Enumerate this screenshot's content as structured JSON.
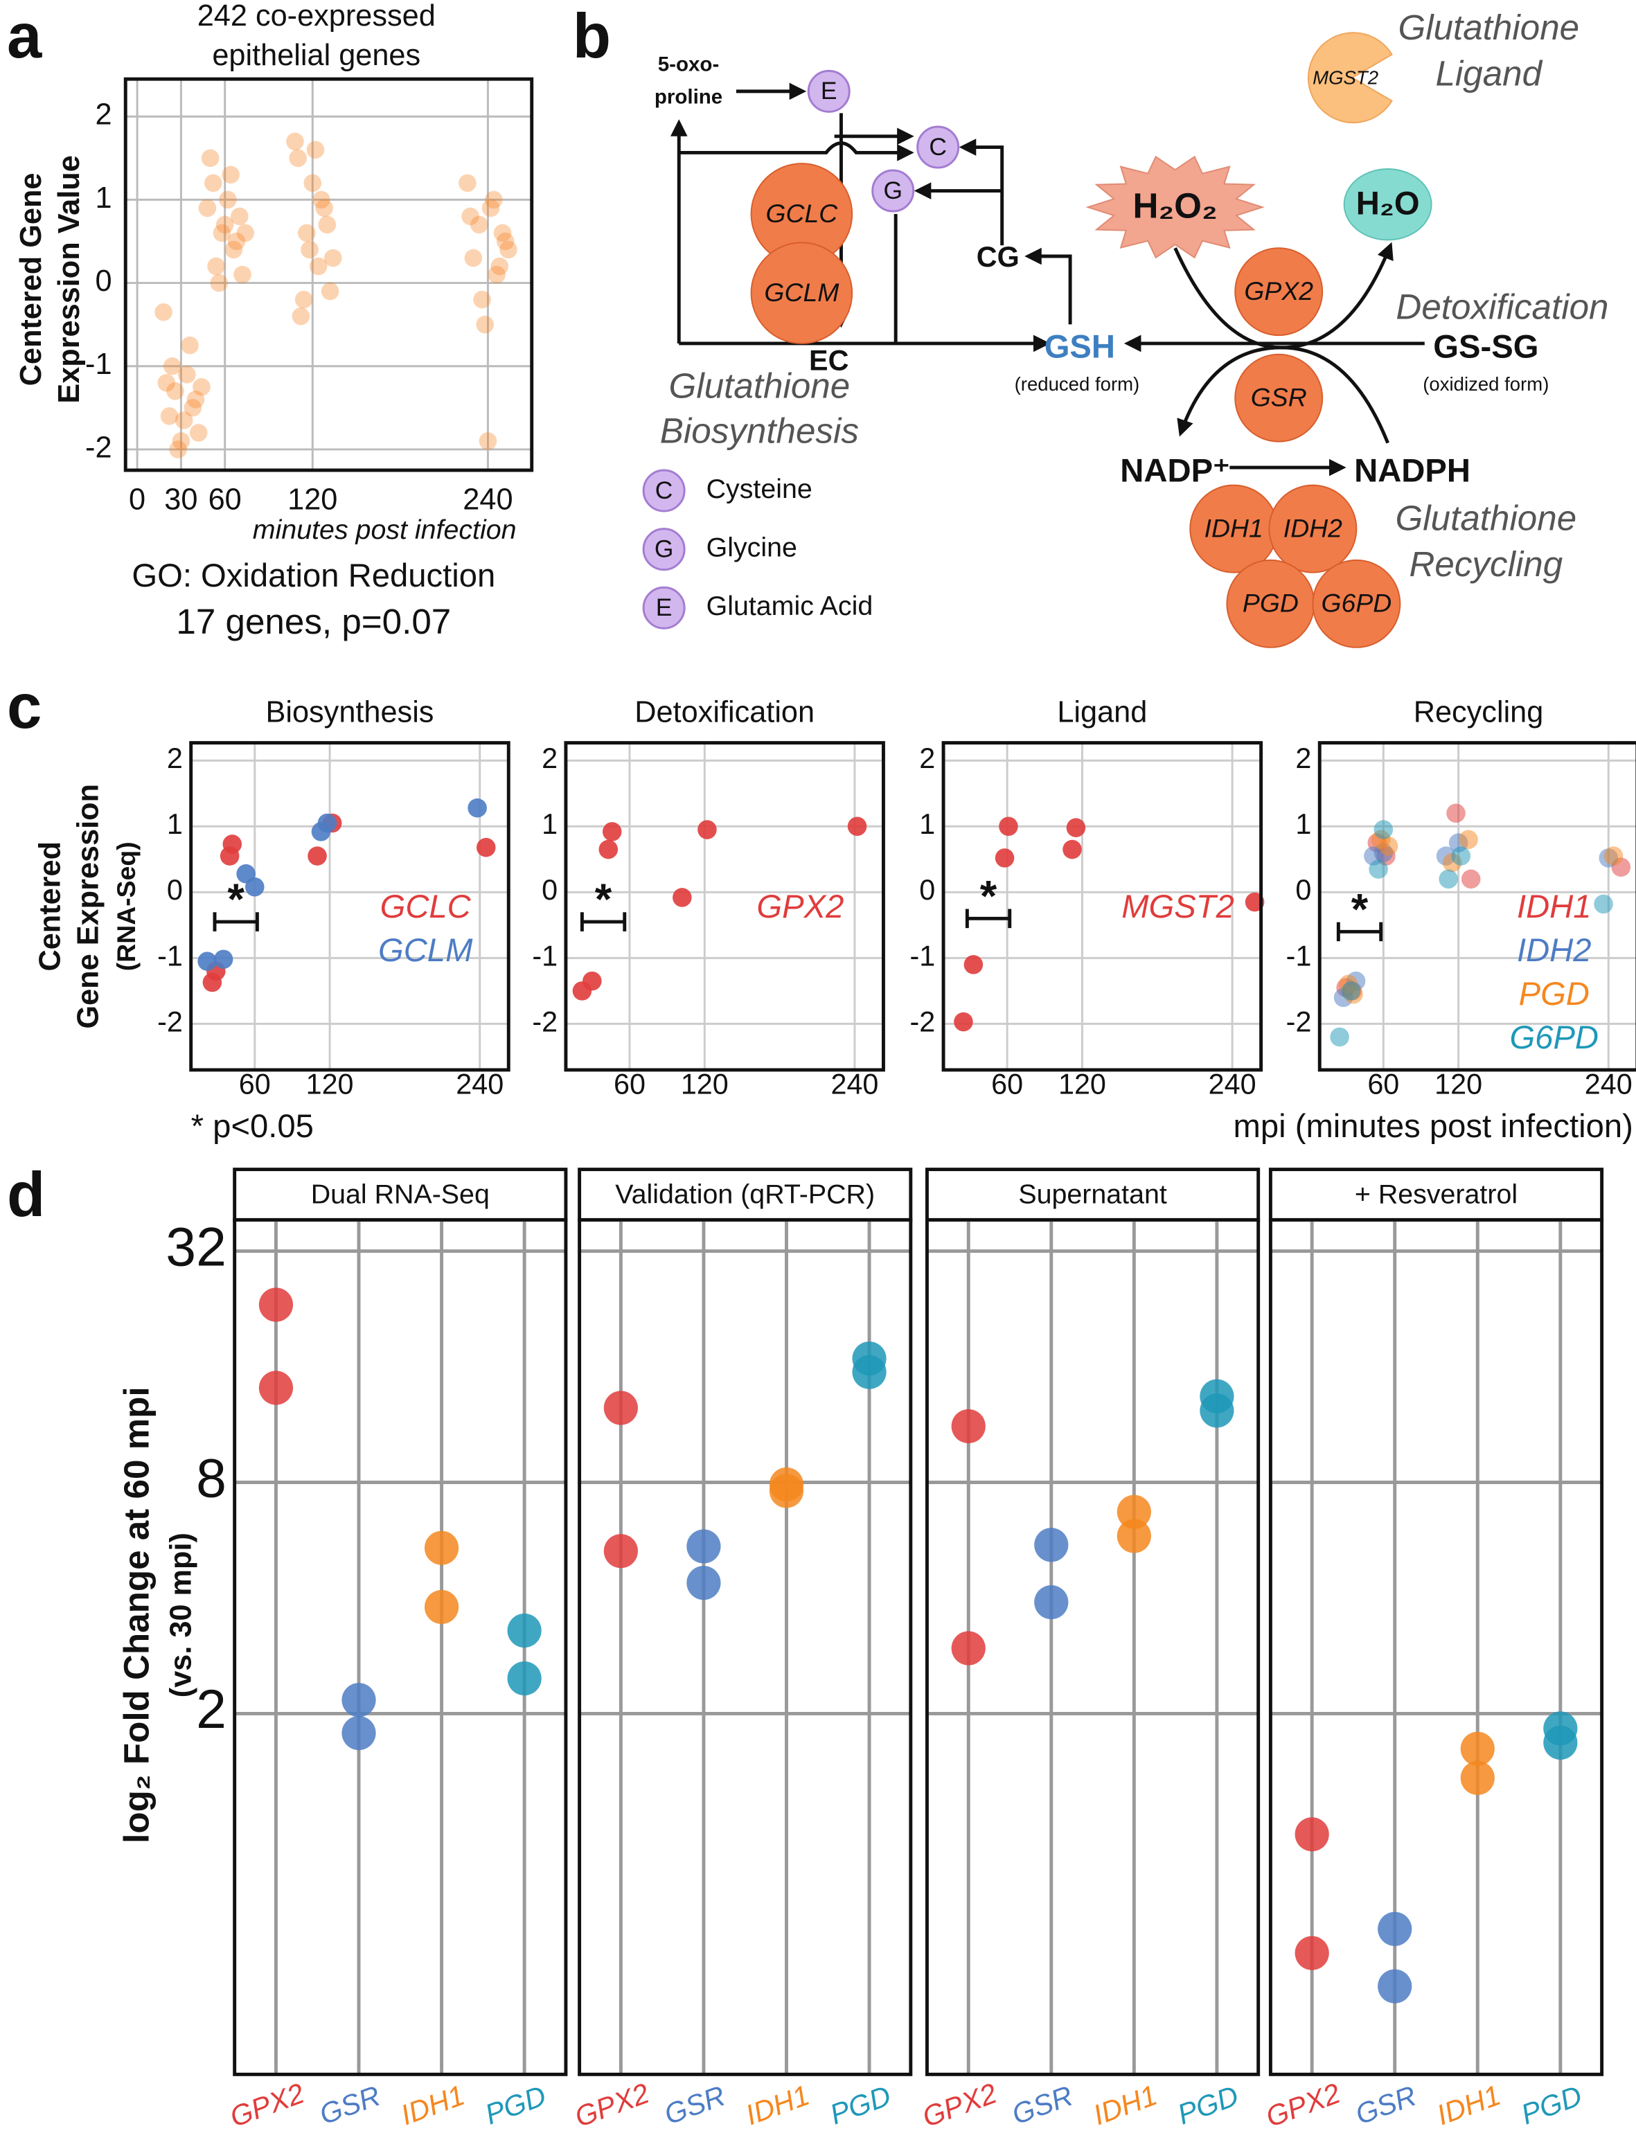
{
  "panel_labels": [
    "a",
    "b",
    "c",
    "d"
  ],
  "chart_data": [
    {
      "type": "scatter",
      "title": [
        "242 co-expressed",
        "epithelial genes"
      ],
      "ylabel": [
        "Centered Gene",
        "Expression Value"
      ],
      "xlabel": "minutes post infection",
      "annotations": [
        "GO: Oxidation Reduction",
        "17 genes, p=0.07"
      ],
      "color": "#f7821f",
      "grid": true,
      "xlim": [
        -8,
        270
      ],
      "ylim": [
        -2.25,
        2.45
      ],
      "xticks": [
        0,
        30,
        60,
        120,
        240
      ],
      "yticks": [
        -2,
        -1,
        0,
        1,
        2
      ],
      "x": [
        18,
        22,
        26,
        30,
        34,
        38,
        42,
        20,
        28,
        36,
        40,
        24,
        32,
        44,
        50,
        54,
        58,
        62,
        66,
        70,
        52,
        56,
        60,
        64,
        68,
        72,
        48,
        74,
        108,
        112,
        116,
        120,
        124,
        128,
        132,
        110,
        118,
        126,
        130,
        114,
        122,
        134,
        226,
        230,
        234,
        238,
        242,
        246,
        250,
        254,
        228,
        236,
        244,
        252,
        240,
        248
      ],
      "values": [
        -0.35,
        -1.6,
        -1.3,
        -1.9,
        -1.1,
        -1.5,
        -1.8,
        -1.2,
        -2.0,
        -0.75,
        -1.4,
        -1.0,
        -1.65,
        -1.25,
        1.5,
        0.2,
        0.6,
        1.0,
        0.4,
        0.8,
        1.2,
        0.0,
        0.7,
        1.3,
        0.5,
        0.1,
        0.9,
        0.6,
        1.7,
        -0.4,
        0.6,
        1.2,
        0.2,
        0.9,
        -0.1,
        1.5,
        0.4,
        1.0,
        0.7,
        -0.2,
        1.6,
        0.3,
        1.2,
        0.3,
        0.7,
        -0.5,
        0.9,
        0.1,
        0.6,
        0.4,
        0.8,
        -0.2,
        1.0,
        0.5,
        -1.9,
        0.2
      ]
    },
    {
      "type": "scatter",
      "ylabel": [
        "Centered",
        "Gene Expression",
        "(RNA-Seq)"
      ],
      "annotation": "* p<0.05",
      "xlabel": "mpi (minutes post infection)",
      "grid": true,
      "xlim": [
        9,
        263
      ],
      "ylim": [
        -2.7,
        2.27
      ],
      "xticks": [
        60,
        120,
        240
      ],
      "yticks": [
        -2,
        -1,
        0,
        1,
        2
      ],
      "facets": [
        {
          "title": "Biosynthesis",
          "alpha": 0.9,
          "bracket": {
            "x": [
              28,
              62
            ],
            "y": -0.45,
            "label": "*"
          },
          "series": [
            {
              "name": "GCLC",
              "color": "#e03c3c",
              "x": [
                26,
                29,
                40,
                42,
                110,
                122,
                245
              ],
              "values": [
                -1.37,
                -1.2,
                0.55,
                0.73,
                0.55,
                1.05,
                0.68
              ]
            },
            {
              "name": "GCLM",
              "color": "#4d7cc4",
              "x": [
                22,
                35,
                53,
                60,
                113,
                118,
                238
              ],
              "values": [
                -1.05,
                -1.02,
                0.28,
                0.08,
                0.92,
                1.05,
                1.28
              ]
            }
          ]
        },
        {
          "title": "Detoxification",
          "alpha": 0.9,
          "bracket": {
            "x": [
              22,
              56
            ],
            "y": -0.45,
            "label": "*"
          },
          "series": [
            {
              "name": "GPX2",
              "color": "#e03c3c",
              "x": [
                22,
                30,
                43,
                46,
                102,
                122,
                242
              ],
              "values": [
                -1.5,
                -1.35,
                0.65,
                0.92,
                -0.08,
                0.95,
                1.0
              ]
            }
          ]
        },
        {
          "title": "Ligand",
          "alpha": 0.9,
          "bracket": {
            "x": [
              28,
              62
            ],
            "y": -0.4,
            "label": "*"
          },
          "series": [
            {
              "name": "MGST2",
              "color": "#e03c3c",
              "x": [
                25,
                33,
                58,
                61,
                112,
                115,
                258
              ],
              "values": [
                -1.97,
                -1.1,
                0.52,
                1.0,
                0.65,
                0.98,
                -0.15
              ]
            }
          ]
        },
        {
          "title": "Recycling",
          "alpha": 0.5,
          "bracket": {
            "x": [
              24,
              58
            ],
            "y": -0.6,
            "label": "*"
          },
          "series": [
            {
              "name": "IDH1",
              "color": "#e03c3c",
              "x": [
                30,
                35,
                55,
                62,
                118,
                130,
                250
              ],
              "values": [
                -1.45,
                -1.5,
                0.75,
                0.55,
                1.2,
                0.2,
                0.38
              ]
            },
            {
              "name": "IDH2",
              "color": "#4d7cc4",
              "x": [
                28,
                38,
                52,
                60,
                110,
                120,
                240
              ],
              "values": [
                -1.6,
                -1.35,
                0.55,
                0.6,
                0.55,
                0.75,
                0.52
              ]
            },
            {
              "name": "PGD",
              "color": "#f5871f",
              "x": [
                32,
                36,
                58,
                64,
                115,
                128,
                244
              ],
              "values": [
                -1.4,
                -1.55,
                0.8,
                0.7,
                0.45,
                0.8,
                0.55
              ]
            },
            {
              "name": "G6PD",
              "color": "#1f98b8",
              "x": [
                25,
                34,
                56,
                60,
                112,
                122,
                236
              ],
              "values": [
                -2.2,
                -1.5,
                0.35,
                0.95,
                0.2,
                0.55,
                -0.18
              ]
            }
          ]
        }
      ]
    },
    {
      "type": "dot",
      "ylabel": [
        "log₂ Fold Change at 60 mpi",
        "(vs. 30 mpi)"
      ],
      "log_base": 2,
      "grid": true,
      "ylim": [
        0.23,
        38.6
      ],
      "yticks": [
        2,
        8,
        32
      ],
      "categories": [
        "GPX2",
        "GSR",
        "IDH1",
        "PGD"
      ],
      "category_colors": [
        "#e03c3c",
        "#4d7cc4",
        "#f5871f",
        "#1f98b8"
      ],
      "facets": [
        {
          "title": "Dual RNA-Seq",
          "values": [
            [
              23.2,
              14.1
            ],
            [
              2.17,
              1.78
            ],
            [
              5.4,
              3.79
            ],
            [
              3.29,
              2.47
            ]
          ]
        },
        {
          "title": "Validation (qRT-PCR)",
          "values": [
            [
              12.5,
              5.3
            ],
            [
              5.45,
              4.38
            ],
            [
              7.9,
              7.6
            ],
            [
              16.8,
              15.5
            ]
          ]
        },
        {
          "title": "Supernatant",
          "values": [
            [
              11.2,
              2.96
            ],
            [
              5.5,
              3.9
            ],
            [
              6.7,
              5.8
            ],
            [
              13.4,
              12.3
            ]
          ]
        },
        {
          "title": "+ Resveratrol",
          "values": [
            [
              0.97,
              0.476
            ],
            [
              0.55,
              0.39
            ],
            [
              1.62,
              1.36
            ],
            [
              1.83,
              1.68
            ]
          ]
        }
      ]
    }
  ],
  "diagram": {
    "metabolites": [
      "5-oxo-",
      "proline",
      "EC",
      "CG",
      "GSH",
      "(reduced form)",
      "H₂O₂",
      "H₂O",
      "GS-SG",
      "(oxidized form)",
      "NADP⁺",
      "NADPH"
    ],
    "enzymes": [
      "GCLC",
      "GCLM",
      "GPX2",
      "GSR",
      "IDH1",
      "IDH2",
      "PGD",
      "G6PD",
      "MGST2"
    ],
    "processes": [
      "Glutathione",
      "Biosynthesis",
      "Detoxification",
      "Glutathione",
      "Recycling",
      "Glutathione",
      "Ligand"
    ],
    "legend": [
      {
        "letter": "C",
        "name": "Cysteine"
      },
      {
        "letter": "G",
        "name": "Glycine"
      },
      {
        "letter": "E",
        "name": "Glutamic Acid"
      }
    ]
  }
}
